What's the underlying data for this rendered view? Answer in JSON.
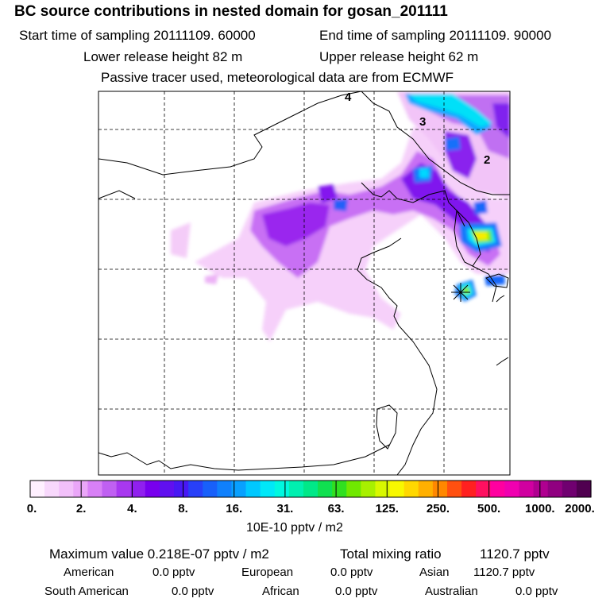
{
  "header": {
    "title": "BC  source contributions in nested domain for gosan_201111",
    "start_label": "Start time of sampling 20111109. 60000",
    "end_label": "End time of sampling 20111109. 90000",
    "lower_label": "Lower release height   82 m",
    "upper_label": "Upper release height   62 m",
    "tracer_label": "Passive tracer used, meteorological data are from ECMWF"
  },
  "chart_data": {
    "type": "heatmap",
    "contour_labels": [
      "4",
      "3",
      "2"
    ],
    "colorbar": {
      "tick_labels": [
        "0.",
        "2.",
        "4.",
        "8.",
        "16.",
        "31.",
        "63.",
        "125.",
        "250.",
        "500.",
        "1000.",
        "2000."
      ],
      "units": "10E-10 pptv / m2",
      "colors": [
        "#fff0ff",
        "#f8d8fc",
        "#f2c0fa",
        "#eaa6f8",
        "#d880f6",
        "#c060f2",
        "#a838f0",
        "#9020ee",
        "#7800ee",
        "#6010f0",
        "#4818f4",
        "#2840f8",
        "#1860fa",
        "#1080fc",
        "#08a0fe",
        "#00c8ff",
        "#00e8f8",
        "#00f8e0",
        "#00f0b0",
        "#00e888",
        "#10e050",
        "#30e020",
        "#70e800",
        "#a8f000",
        "#d8f800",
        "#f8f800",
        "#ffd800",
        "#ffb000",
        "#ff8800",
        "#ff5010",
        "#ff2020",
        "#ff1060",
        "#ff00a0",
        "#f000b0",
        "#d000a0",
        "#b00090",
        "#900080",
        "#700070",
        "#500050"
      ]
    },
    "grid": true,
    "receptor": "Gosan",
    "levels": [
      0,
      2,
      4,
      8,
      16,
      31,
      63,
      125,
      250,
      500,
      1000,
      2000
    ],
    "x_range": [
      "78E",
      "132E"
    ],
    "y_range": [
      "20N",
      "50N"
    ]
  },
  "summary": {
    "max_label": "Maximum value  0.218E-07 pptv / m2",
    "total_label": "Total mixing ratio",
    "total_value": "1120.7 pptv",
    "american_label": "American",
    "american_value": "0.0 pptv",
    "european_label": "European",
    "european_value": "0.0 pptv",
    "asian_label": "Asian",
    "asian_value": "1120.7 pptv",
    "south_american_label": "South American",
    "south_american_value": "0.0 pptv",
    "african_label": "African",
    "african_value": "0.0 pptv",
    "australian_label": "Australian",
    "australian_value": "0.0 pptv"
  }
}
